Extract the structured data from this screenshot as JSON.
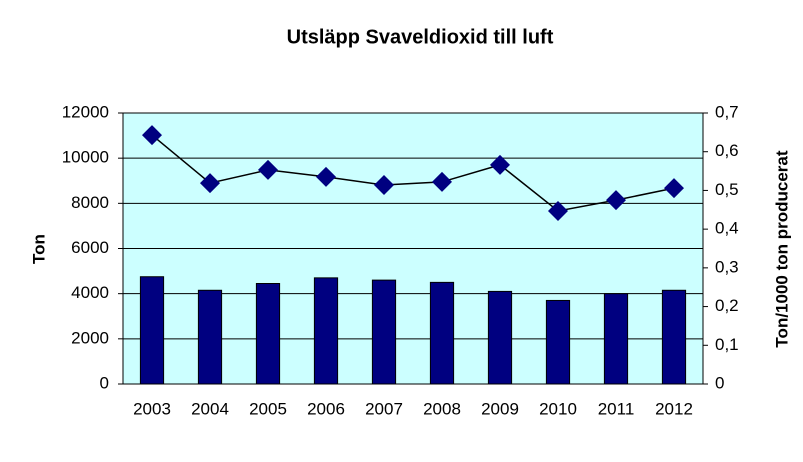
{
  "chart_data": {
    "type": "bar-line",
    "title": "Utsläpp Svaveldioxid till luft",
    "y_label": "Ton",
    "y2_label": "Ton/1000 ton producerat",
    "categories": [
      "2003",
      "2004",
      "2005",
      "2006",
      "2007",
      "2008",
      "2009",
      "2010",
      "2011",
      "2012"
    ],
    "series": [
      {
        "type": "bar",
        "color": "#000080",
        "values": [
          4750,
          4150,
          4450,
          4700,
          4600,
          4500,
          4100,
          3700,
          4000,
          4150
        ]
      },
      {
        "type": "line",
        "axis": "y2",
        "color": "#000080",
        "values": [
          0.643,
          0.519,
          0.553,
          0.535,
          0.514,
          0.522,
          0.566,
          0.447,
          0.475,
          0.506
        ]
      }
    ],
    "ylim": [
      0,
      12000
    ],
    "yticks": [
      0,
      2000,
      4000,
      6000,
      8000,
      10000,
      12000
    ],
    "y2lim": [
      0,
      0.7
    ],
    "y2ticks": [
      0,
      {
        "value": 0.1,
        "label": "0,1"
      },
      {
        "value": 0.2,
        "label": "0,2"
      },
      {
        "value": 0.3,
        "label": "0,3"
      },
      {
        "value": 0.4,
        "label": "0,4"
      },
      {
        "value": 0.5,
        "label": "0,5"
      },
      {
        "value": 0.6,
        "label": "0,6"
      },
      {
        "value": 0.7,
        "label": "0,7"
      }
    ],
    "grid": true,
    "plot_background": "#ccffff"
  }
}
